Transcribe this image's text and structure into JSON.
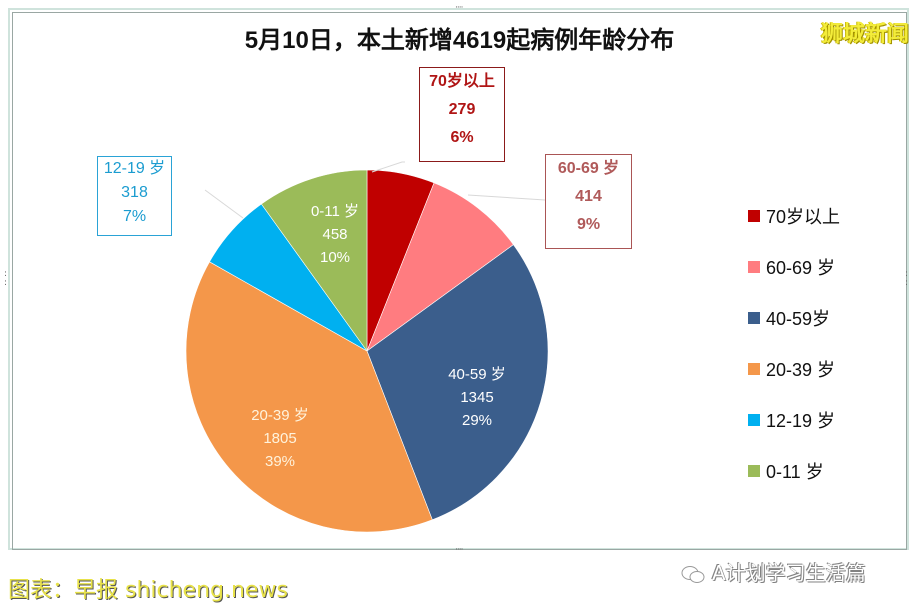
{
  "title": "5月10日，本土新增4619起病例年龄分布",
  "brand": "狮城新闻",
  "chart_data": {
    "type": "pie",
    "title": "5月10日，本土新增4619起病例年龄分布",
    "total": 4619,
    "start_angle_deg": 0,
    "direction": "clockwise",
    "categories": [
      "70岁以上",
      "60-69 岁",
      "40-59岁",
      "20-39 岁",
      "12-19 岁",
      "0-11 岁"
    ],
    "values": [
      279,
      414,
      1345,
      1805,
      318,
      458
    ],
    "percentages": [
      "6%",
      "9%",
      "29%",
      "39%",
      "7%",
      "10%"
    ],
    "colors": [
      "#c00000",
      "#ff7c80",
      "#3b5e8c",
      "#f4974a",
      "#00b0f0",
      "#9bbb59"
    ],
    "legend_position": "right"
  },
  "slices": [
    {
      "label": "70岁以上",
      "value": "279",
      "pct": "6%"
    },
    {
      "label": "60-69 岁",
      "value": "414",
      "pct": "9%"
    },
    {
      "label": "40-59 岁",
      "value": "1345",
      "pct": "29%"
    },
    {
      "label": "20-39 岁",
      "value": "1805",
      "pct": "39%"
    },
    {
      "label": "12-19 岁",
      "value": "318",
      "pct": "7%"
    },
    {
      "label": "0-11 岁",
      "value": "458",
      "pct": "10%"
    }
  ],
  "legend": [
    {
      "label": "70岁以上",
      "color": "#c00000"
    },
    {
      "label": "60-69 岁",
      "color": "#ff7c80"
    },
    {
      "label": "40-59岁",
      "color": "#3b5e8c"
    },
    {
      "label": "20-39 岁",
      "color": "#f4974a"
    },
    {
      "label": "12-19 岁",
      "color": "#00b0f0"
    },
    {
      "label": "0-11 岁",
      "color": "#9bbb59"
    }
  ],
  "footer": {
    "left": "图表：早报 shicheng.news",
    "right": "A计划学习生活篇"
  }
}
